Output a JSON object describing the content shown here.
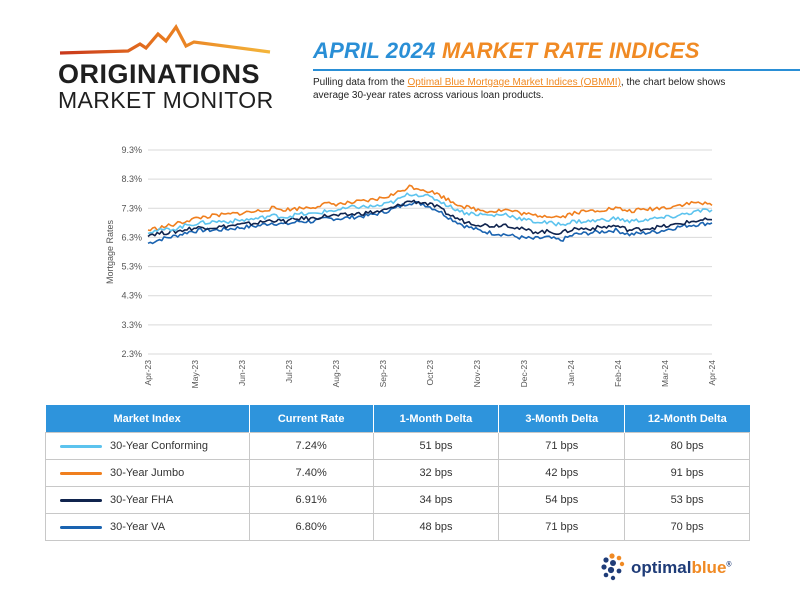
{
  "logo": {
    "line1": "ORIGINATIONS",
    "line2": "MARKET MONITOR"
  },
  "title": {
    "part1": "APRIL 2024",
    "part2": "MARKET RATE INDICES"
  },
  "description": {
    "before": "Pulling data from the ",
    "link": "Optimal Blue Mortgage Market Indices (OBMMI)",
    "after": ", the chart below shows average 30-year rates across various loan products."
  },
  "colors": {
    "conforming": "#5cc3ee",
    "jumbo": "#f07f1e",
    "fha": "#10244e",
    "va": "#1a63b0",
    "accent": "#2a8fd6"
  },
  "chart_data": {
    "type": "line",
    "ylabel": "Mortgage Rates",
    "yticks": [
      "9.3%",
      "8.3%",
      "7.3%",
      "6.3%",
      "5.3%",
      "4.3%",
      "3.3%",
      "2.3%"
    ],
    "ylim": [
      2.3,
      9.3
    ],
    "xticks": [
      "Apr-23",
      "May-23",
      "Jun-23",
      "Jul-23",
      "Aug-23",
      "Sep-23",
      "Oct-23",
      "Nov-23",
      "Dec-23",
      "Jan-24",
      "Feb-24",
      "Mar-24",
      "Apr-24"
    ],
    "grid": true,
    "series": [
      {
        "name": "30-Year Conforming",
        "color": "#5cc3ee",
        "values": [
          6.5,
          6.55,
          6.6,
          6.75,
          6.8,
          6.85,
          6.85,
          6.9,
          6.95,
          7.05,
          7.0,
          7.1,
          7.1,
          7.2,
          7.25,
          7.35,
          7.35,
          7.4,
          7.55,
          7.8,
          7.75,
          7.6,
          7.35,
          7.15,
          7.1,
          7.05,
          7.1,
          6.95,
          6.85,
          6.8,
          6.75,
          6.85,
          6.85,
          6.9,
          6.95,
          6.85,
          6.9,
          6.95,
          7.0,
          7.1,
          7.2,
          7.24
        ]
      },
      {
        "name": "30-Year Jumbo",
        "color": "#f07f1e",
        "values": [
          6.55,
          6.65,
          6.75,
          6.9,
          7.0,
          7.05,
          7.1,
          7.15,
          7.2,
          7.3,
          7.25,
          7.3,
          7.35,
          7.45,
          7.45,
          7.5,
          7.55,
          7.65,
          7.8,
          8.05,
          7.95,
          7.8,
          7.55,
          7.35,
          7.25,
          7.2,
          7.25,
          7.15,
          7.05,
          7.05,
          7.0,
          7.15,
          7.2,
          7.25,
          7.3,
          7.2,
          7.25,
          7.3,
          7.35,
          7.45,
          7.5,
          7.4
        ]
      },
      {
        "name": "30-Year FHA",
        "color": "#10244e",
        "values": [
          6.4,
          6.45,
          6.5,
          6.6,
          6.65,
          6.65,
          6.7,
          6.75,
          6.8,
          6.9,
          6.85,
          6.95,
          6.95,
          7.05,
          7.05,
          7.1,
          7.15,
          7.2,
          7.35,
          7.55,
          7.5,
          7.35,
          7.05,
          6.85,
          6.75,
          6.7,
          6.75,
          6.6,
          6.5,
          6.5,
          6.45,
          6.6,
          6.6,
          6.65,
          6.7,
          6.55,
          6.6,
          6.65,
          6.7,
          6.8,
          6.88,
          6.91
        ]
      },
      {
        "name": "30-Year VA",
        "color": "#1a63b0",
        "values": [
          6.1,
          6.25,
          6.35,
          6.5,
          6.55,
          6.55,
          6.6,
          6.65,
          6.7,
          6.8,
          6.75,
          6.85,
          6.85,
          6.95,
          6.95,
          7.0,
          7.05,
          7.15,
          7.3,
          7.5,
          7.45,
          7.25,
          6.95,
          6.7,
          6.55,
          6.45,
          6.4,
          6.3,
          6.25,
          6.3,
          6.2,
          6.4,
          6.45,
          6.5,
          6.55,
          6.4,
          6.45,
          6.5,
          6.6,
          6.7,
          6.75,
          6.8
        ]
      }
    ]
  },
  "table": {
    "headers": [
      "Market Index",
      "Current Rate",
      "1-Month Delta",
      "3-Month Delta",
      "12-Month Delta"
    ],
    "rows": [
      {
        "name": "30-Year Conforming",
        "rate": "7.24%",
        "m1": "51 bps",
        "m3": "71 bps",
        "m12": "80 bps",
        "color": "#5cc3ee"
      },
      {
        "name": "30-Year Jumbo",
        "rate": "7.40%",
        "m1": "32 bps",
        "m3": "42 bps",
        "m12": "91 bps",
        "color": "#f07f1e"
      },
      {
        "name": "30-Year FHA",
        "rate": "6.91%",
        "m1": "34 bps",
        "m3": "54 bps",
        "m12": "53 bps",
        "color": "#10244e"
      },
      {
        "name": "30-Year VA",
        "rate": "6.80%",
        "m1": "48 bps",
        "m3": "71 bps",
        "m12": "70 bps",
        "color": "#1a63b0"
      }
    ]
  },
  "brand": {
    "part1": "optimal",
    "part2": "blue",
    "mark": "®"
  }
}
